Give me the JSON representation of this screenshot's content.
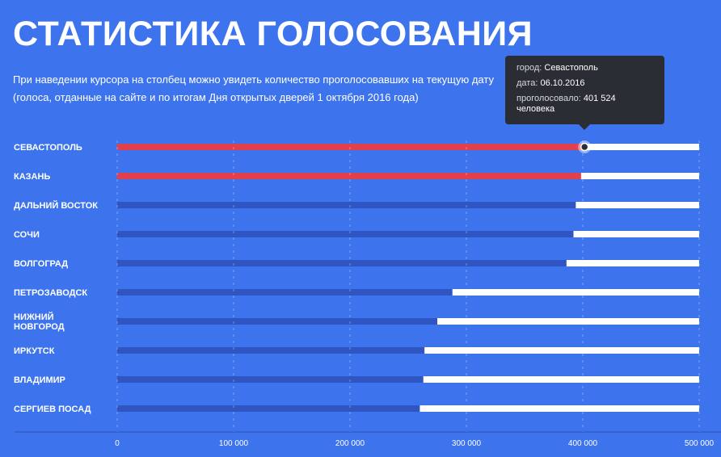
{
  "header": {
    "title": "СТАТИСТИКА ГОЛОСОВАНИЯ",
    "subtitle_line1": "При наведении курсора на столбец можно увидеть количество проголосовавших на текущую дату",
    "subtitle_line2": "(голоса, отданные на сайте и по итогам Дня открытых дверей 1 октября 2016 года)"
  },
  "tooltip": {
    "city_label": "город:",
    "city_value": "Севастополь",
    "date_label": "дата:",
    "date_value": "06.10.2016",
    "votes_label": "проголосовало:",
    "votes_value": "401 524",
    "votes_unit": "человека"
  },
  "colors": {
    "background": "#3d74ee",
    "bar_default": "#2f55c2",
    "bar_highlight": "#e2404d",
    "bar_track": "#ffffff"
  },
  "chart_data": {
    "type": "bar",
    "orientation": "horizontal",
    "categories": [
      "СЕВАСТОПОЛЬ",
      "КАЗАНЬ",
      "ДАЛЬНИЙ ВОСТОК",
      "СОЧИ",
      "ВОЛГОГРАД",
      "ПЕТРОЗАВОДСК",
      "НИЖНИЙ НОВГОРОД",
      "ИРКУТСК",
      "ВЛАДИМИР",
      "СЕРГИЕВ ПОСАД"
    ],
    "category_lines": [
      [
        "СЕВАСТОПОЛЬ"
      ],
      [
        "КАЗАНЬ"
      ],
      [
        "ДАЛЬНИЙ ВОСТОК"
      ],
      [
        "СОЧИ"
      ],
      [
        "ВОЛГОГРАД"
      ],
      [
        "ПЕТРОЗАВОДСК"
      ],
      [
        "НИЖНИЙ",
        "НОВГОРОД"
      ],
      [
        "ИРКУТСК"
      ],
      [
        "ВЛАДИМИР"
      ],
      [
        "СЕРГИЕВ ПОСАД"
      ]
    ],
    "values": [
      401524,
      398500,
      394000,
      392000,
      386000,
      288000,
      275000,
      264000,
      263000,
      260000
    ],
    "highlighted": [
      true,
      true,
      false,
      false,
      false,
      false,
      false,
      false,
      false,
      false
    ],
    "xlim": [
      0,
      500000
    ],
    "ticks": [
      0,
      100000,
      200000,
      300000,
      400000,
      500000
    ],
    "tick_labels": [
      "0",
      "100 000",
      "200 000",
      "300 000",
      "400 000",
      "500 000"
    ],
    "active_category": "СЕВАСТОПОЛЬ",
    "grid": true,
    "legend": "none"
  }
}
